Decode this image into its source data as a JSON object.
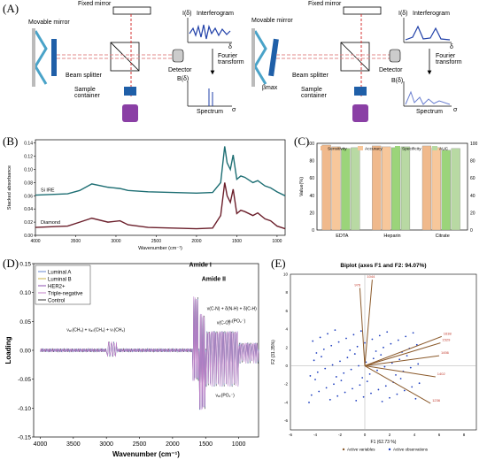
{
  "panel_labels": {
    "a": "(A)",
    "b": "(B)",
    "c": "(C)",
    "d": "(D)",
    "e": "(E)"
  },
  "panel_a": {
    "fixed_mirror": "Fixed mirror",
    "movable_mirror": "Movable mirror",
    "beam_splitter": "Beam splitter",
    "sample_container": "Sample container",
    "detector": "Detector",
    "interferogram_axis": "I(δ)",
    "interferogram_title": "Interferogram",
    "delta": "δ",
    "fourier_transform": "Fourier transform",
    "spectrum_axis": "B(δ)",
    "spectrum": "Spectrum",
    "sigma": "σ",
    "beta_max": "βmax"
  },
  "colors": {
    "sensitivity": "#f0b98c",
    "accuracy": "#f7c79b",
    "specificity": "#9bd47a",
    "auc": "#b8d9a3",
    "si_ire": "#1d6e73",
    "diamond": "#6b1f2b",
    "luminal_a": "#6a8ad0",
    "luminal_b": "#c9b04a",
    "her2": "#8c4fb0",
    "triple_negative": "#c07fc7",
    "control": "#333333"
  },
  "chart_data": [
    {
      "type": "line",
      "id": "B",
      "xlabel": "Wavenumber (cm⁻¹)",
      "ylabel": "Stacked absorbance",
      "x_ticks": [
        4000,
        3500,
        3000,
        2500,
        2000,
        1500,
        1000
      ],
      "y_ticks": [
        0.0,
        0.02,
        0.04,
        0.06,
        0.08,
        0.1,
        0.12,
        0.14
      ],
      "xlim": [
        4000,
        900
      ],
      "ylim": [
        0.0,
        0.145
      ],
      "series": [
        {
          "name": "Si IRE",
          "x": [
            4000,
            3600,
            3450,
            3300,
            3100,
            2950,
            2850,
            2600,
            2000,
            1800,
            1700,
            1650,
            1620,
            1580,
            1545,
            1500,
            1450,
            1400,
            1300,
            1240,
            1150,
            1080,
            1000,
            900
          ],
          "y": [
            0.061,
            0.063,
            0.068,
            0.078,
            0.073,
            0.071,
            0.068,
            0.066,
            0.064,
            0.065,
            0.08,
            0.135,
            0.11,
            0.1,
            0.122,
            0.085,
            0.09,
            0.088,
            0.08,
            0.083,
            0.075,
            0.072,
            0.066,
            0.06
          ]
        },
        {
          "name": "Diamond",
          "x": [
            4000,
            3600,
            3450,
            3300,
            3100,
            2950,
            2850,
            2600,
            2000,
            1800,
            1700,
            1650,
            1620,
            1580,
            1545,
            1500,
            1450,
            1400,
            1300,
            1240,
            1150,
            1080,
            1000,
            900
          ],
          "y": [
            0.012,
            0.014,
            0.02,
            0.026,
            0.02,
            0.022,
            0.016,
            0.012,
            0.01,
            0.011,
            0.03,
            0.08,
            0.06,
            0.05,
            0.07,
            0.033,
            0.038,
            0.036,
            0.03,
            0.034,
            0.025,
            0.022,
            0.014,
            0.01
          ]
        }
      ]
    },
    {
      "type": "bar",
      "id": "C",
      "ylabel": "Value(%)",
      "categories": [
        "EDTA",
        "Heparin",
        "Citrate"
      ],
      "ylim": [
        0,
        100
      ],
      "y_ticks": [
        0,
        20,
        40,
        60,
        80,
        100
      ],
      "series": [
        {
          "name": "Sensitivity",
          "values": [
            98,
            97,
            97
          ]
        },
        {
          "name": "Accuracy",
          "values": [
            96,
            96,
            95
          ]
        },
        {
          "name": "Specificity",
          "values": [
            94,
            95,
            92
          ]
        },
        {
          "name": "AUC",
          "values": [
            95,
            96,
            94
          ]
        }
      ]
    },
    {
      "type": "line",
      "id": "D",
      "xlabel": "Wavenumber (cm⁻¹)",
      "ylabel": "Loading",
      "x_ticks": [
        4000,
        3500,
        3000,
        2500,
        2000,
        1500,
        1000
      ],
      "y_ticks": [
        -0.15,
        -0.1,
        -0.05,
        0.0,
        0.05,
        0.1,
        0.15
      ],
      "xlim": [
        4100,
        700
      ],
      "ylim": [
        -0.15,
        0.15
      ],
      "legend": [
        "Luminal A",
        "Luminal B",
        "HER2+",
        "Triple-negative",
        "Control"
      ],
      "annotations": {
        "amide1": "Amide I",
        "amide2": "Amide II",
        "ch": "νₐₛ(CH₃) + νₐₛ(CH₂) + νₛ(CH₃)",
        "cn": "ν(C-N) + δ(N-H) + δ(C-H)",
        "co": "ν(C-O)",
        "po2s": "νₛ(PO₂⁻)",
        "po2as": "νₐₛ(PO₂⁻)"
      }
    },
    {
      "type": "scatter",
      "id": "E",
      "title": "Biplot (axes F1 and F2: 94.07%)",
      "xlabel": "F1 (62.73 %)",
      "ylabel": "F2 (31.35%)",
      "x_ticks": [
        -6,
        -4,
        -2,
        0,
        2,
        4,
        6,
        8
      ],
      "y_ticks": [
        -6,
        -4,
        -2,
        0,
        2,
        4,
        6,
        8,
        10
      ],
      "xlim": [
        -6,
        9
      ],
      "ylim": [
        -7,
        10
      ],
      "variables": [
        {
          "label": "976",
          "x": -0.4,
          "y": 8.5
        },
        {
          "label": "1044",
          "x": 0.6,
          "y": 9.4
        },
        {
          "label": "1638",
          "x": 6.2,
          "y": 3.2
        },
        {
          "label": "1529",
          "x": 6.1,
          "y": 2.5
        },
        {
          "label": "1456",
          "x": 6.0,
          "y": 1.1
        },
        {
          "label": "1402",
          "x": 5.7,
          "y": -1.2
        },
        {
          "label": "1236",
          "x": 5.3,
          "y": -4.1
        }
      ],
      "legend": [
        "Active variables",
        "Active observations"
      ]
    }
  ]
}
